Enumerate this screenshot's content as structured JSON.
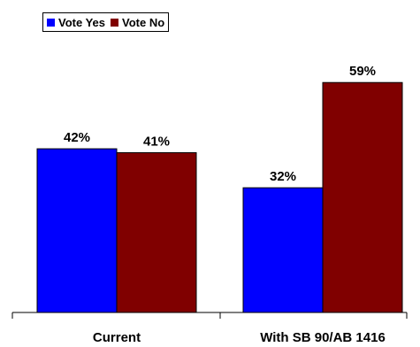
{
  "chart_data": {
    "type": "bar",
    "categories": [
      "Current",
      "With SB 90/AB 1416"
    ],
    "series": [
      {
        "name": "Vote Yes",
        "color": "#0000ff",
        "values": [
          42,
          32
        ]
      },
      {
        "name": "Vote No",
        "color": "#800000",
        "values": [
          41,
          59
        ]
      }
    ],
    "data_labels": [
      [
        "42%",
        "32%"
      ],
      [
        "41%",
        "59%"
      ]
    ],
    "ylim": [
      0,
      67
    ],
    "legend_position": "top-left",
    "grid": false
  }
}
